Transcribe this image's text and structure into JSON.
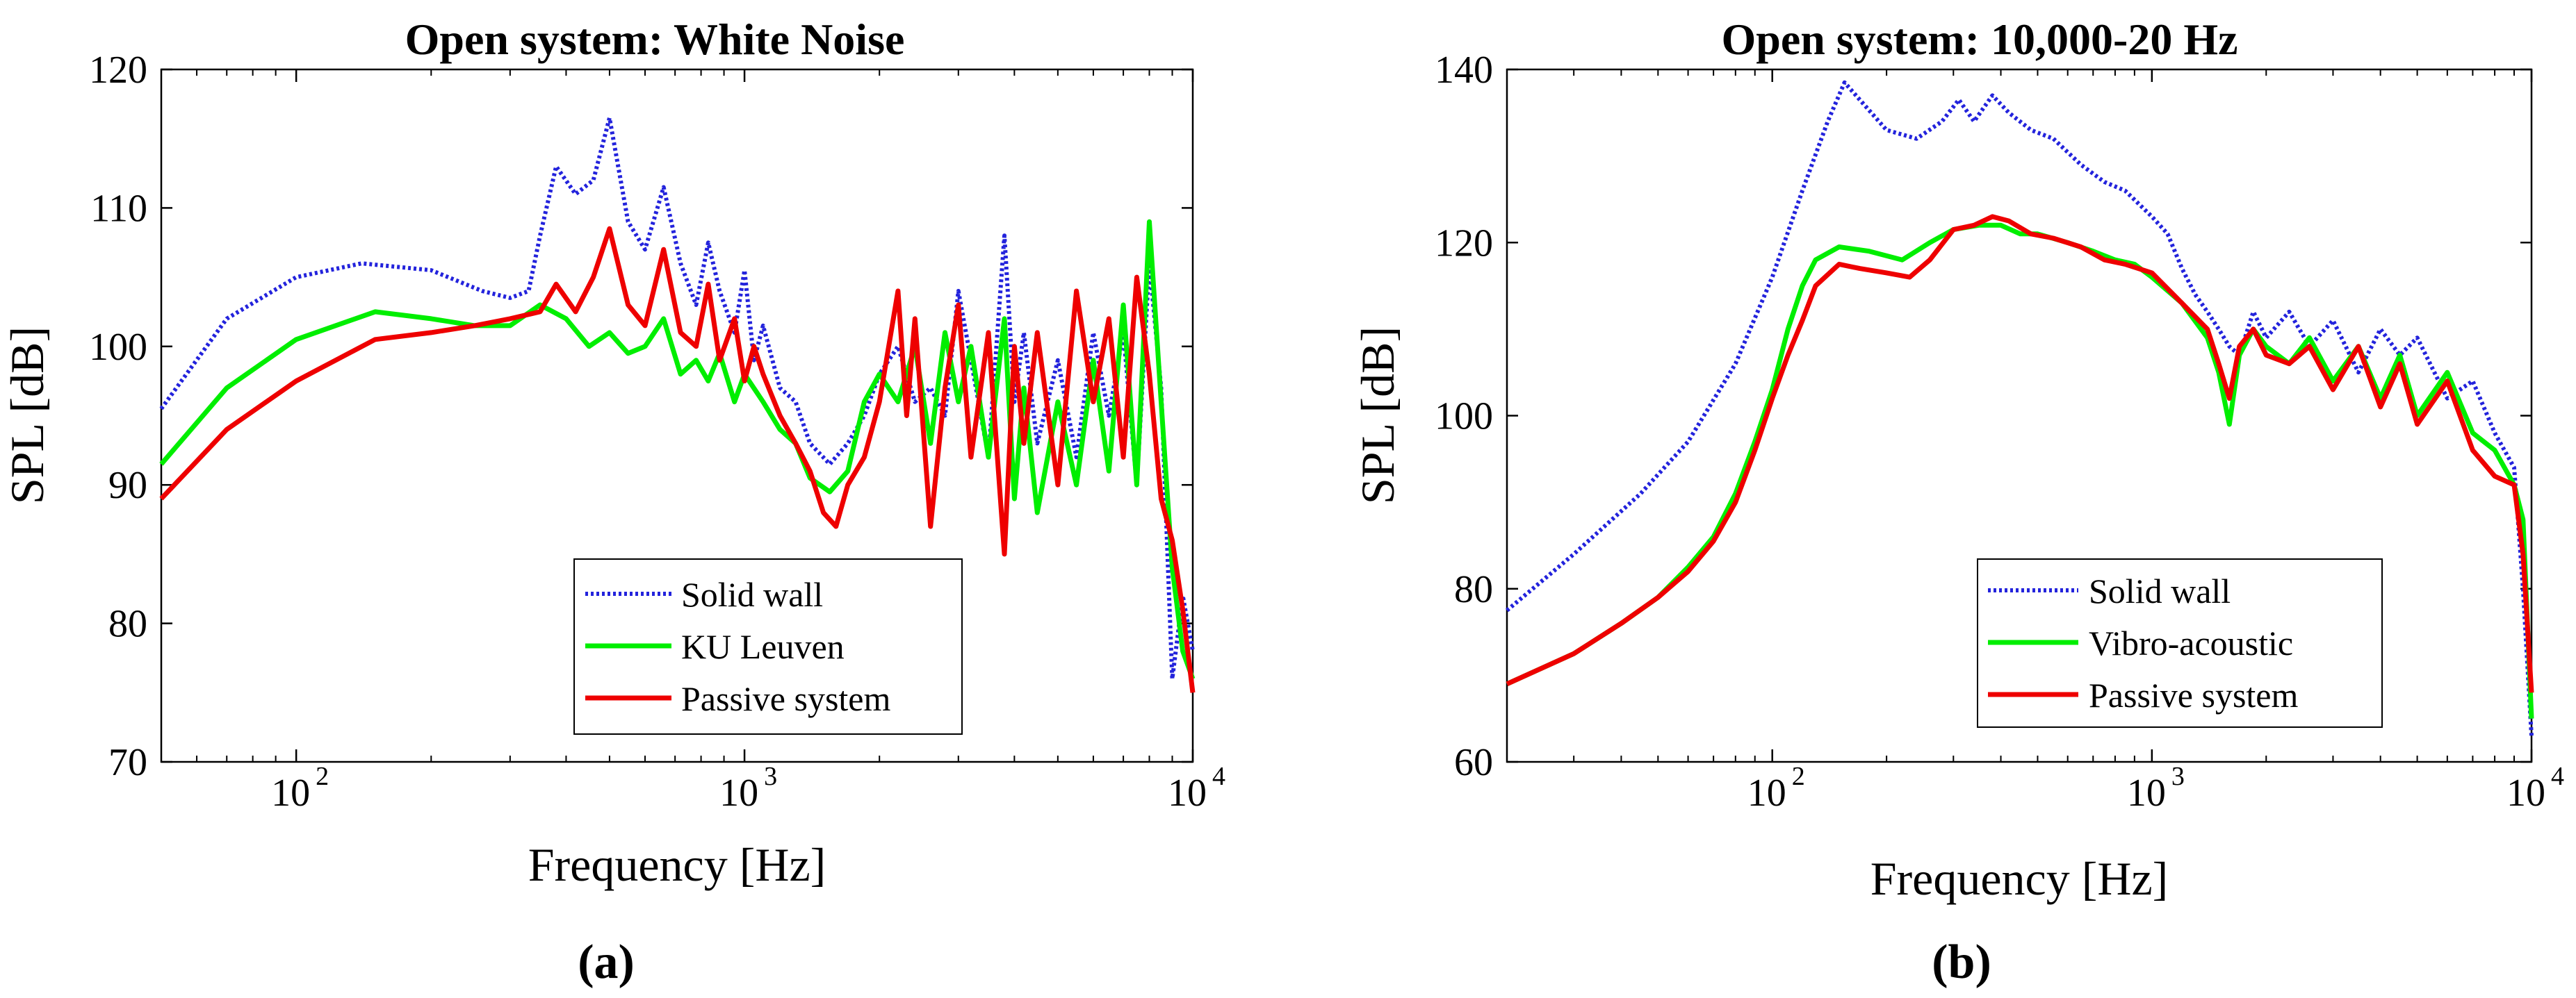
{
  "figure": {
    "panel_labels": [
      "(a)",
      "(b)"
    ]
  },
  "colors": {
    "solid_wall": "#2323dc",
    "ku_leuven": "#00ee00",
    "vibro_acoustic": "#00ee00",
    "passive_system": "#ee0000",
    "axes": "#000000"
  },
  "chart_data": [
    {
      "type": "line",
      "title": "Open system: White Noise",
      "xlabel": "Frequency [Hz]",
      "ylabel": "SPL [dB]",
      "xscale": "log",
      "xlim": [
        50,
        10000
      ],
      "ylim": [
        70,
        120
      ],
      "xticks": [
        {
          "value": 100,
          "base": "10",
          "exp": "2"
        },
        {
          "value": 1000,
          "base": "10",
          "exp": "3"
        },
        {
          "value": 10000,
          "base": "10",
          "exp": "4"
        }
      ],
      "yticks": [
        70,
        80,
        90,
        100,
        110,
        120
      ],
      "grid": false,
      "legend_position": "bottom-right",
      "series": [
        {
          "name": "Solid wall",
          "color": "#2323dc",
          "style": "dotted",
          "x": [
            50,
            70,
            100,
            140,
            200,
            260,
            300,
            330,
            350,
            380,
            420,
            460,
            500,
            550,
            600,
            660,
            720,
            780,
            830,
            880,
            950,
            1000,
            1050,
            1100,
            1200,
            1300,
            1400,
            1550,
            1700,
            1850,
            2000,
            2200,
            2400,
            2600,
            2800,
            3000,
            3200,
            3500,
            3800,
            4000,
            4200,
            4500,
            5000,
            5500,
            6000,
            6500,
            7000,
            7500,
            8000,
            8500,
            9000,
            9500,
            10000
          ],
          "y": [
            95.5,
            102,
            105,
            106,
            105.5,
            104,
            103.5,
            104,
            108,
            113,
            111,
            112,
            116.5,
            109,
            107,
            111.5,
            106,
            103,
            107.5,
            104,
            101,
            105.5,
            99,
            101.5,
            97,
            96,
            93,
            91.5,
            93,
            95,
            98,
            100,
            96,
            97,
            95,
            104,
            99,
            92,
            108,
            96,
            101,
            93,
            99,
            92,
            101,
            95,
            101,
            90,
            106,
            97,
            76,
            82,
            78
          ]
        },
        {
          "name": "KU Leuven",
          "color": "#00ee00",
          "style": "solid",
          "x": [
            50,
            70,
            100,
            150,
            200,
            250,
            300,
            350,
            400,
            450,
            500,
            550,
            600,
            660,
            720,
            780,
            830,
            880,
            950,
            1000,
            1100,
            1200,
            1300,
            1400,
            1550,
            1700,
            1850,
            2000,
            2200,
            2400,
            2600,
            2800,
            3000,
            3200,
            3500,
            3800,
            4000,
            4200,
            4500,
            5000,
            5500,
            6000,
            6500,
            7000,
            7500,
            8000,
            8500,
            9000,
            9500,
            10000
          ],
          "y": [
            91.5,
            97,
            100.5,
            102.5,
            102,
            101.5,
            101.5,
            103,
            102,
            100,
            101,
            99.5,
            100,
            102,
            98,
            99,
            97.5,
            99.5,
            96,
            98,
            96,
            94,
            93,
            90.5,
            89.5,
            91,
            96,
            98,
            96,
            100,
            93,
            101,
            96,
            100,
            92,
            102,
            89,
            97,
            88,
            96,
            90,
            99,
            91,
            103,
            90,
            109,
            96,
            84,
            78,
            76
          ]
        },
        {
          "name": "Passive system",
          "color": "#ee0000",
          "style": "solid",
          "x": [
            50,
            70,
            100,
            150,
            200,
            250,
            300,
            350,
            380,
            420,
            460,
            500,
            550,
            600,
            660,
            720,
            780,
            830,
            880,
            950,
            1000,
            1050,
            1100,
            1200,
            1300,
            1400,
            1500,
            1600,
            1700,
            1850,
            2000,
            2200,
            2300,
            2400,
            2600,
            2800,
            3000,
            3200,
            3500,
            3800,
            4000,
            4200,
            4500,
            5000,
            5500,
            6000,
            6500,
            7000,
            7500,
            8000,
            8500,
            9000,
            9500,
            10000
          ],
          "y": [
            89,
            94,
            97.5,
            100.5,
            101,
            101.5,
            102,
            102.5,
            104.5,
            102.5,
            105,
            108.5,
            103,
            101.5,
            107,
            101,
            100,
            104.5,
            99,
            102,
            97.5,
            100,
            98,
            95,
            93,
            91,
            88,
            87,
            90,
            92,
            96,
            104,
            95,
            102,
            87,
            97,
            103,
            92,
            101,
            85,
            100,
            93,
            101,
            90,
            104,
            96,
            102,
            92,
            105,
            98,
            89,
            86,
            81,
            75
          ]
        }
      ]
    },
    {
      "type": "line",
      "title": "Open system: 10,000-20 Hz",
      "xlabel": "Frequency [Hz]",
      "ylabel": "SPL [dB]",
      "xscale": "log",
      "xlim": [
        20,
        10000
      ],
      "ylim": [
        60,
        140
      ],
      "xticks": [
        {
          "value": 100,
          "base": "10",
          "exp": "2"
        },
        {
          "value": 1000,
          "base": "10",
          "exp": "3"
        },
        {
          "value": 10000,
          "base": "10",
          "exp": "4"
        }
      ],
      "yticks": [
        60,
        80,
        100,
        120,
        140
      ],
      "grid": false,
      "legend_position": "bottom-right",
      "series": [
        {
          "name": "Solid wall",
          "color": "#2323dc",
          "style": "dotted",
          "x": [
            20,
            30,
            45,
            60,
            80,
            100,
            120,
            140,
            155,
            170,
            200,
            240,
            280,
            310,
            340,
            380,
            420,
            480,
            550,
            650,
            750,
            850,
            1000,
            1100,
            1200,
            1300,
            1400,
            1500,
            1600,
            1700,
            1850,
            2000,
            2300,
            2600,
            3000,
            3500,
            4000,
            4500,
            5000,
            6000,
            7000,
            8000,
            9000,
            9500,
            10000
          ],
          "y": [
            77.5,
            84,
            91,
            97,
            106,
            116,
            126,
            134,
            138.5,
            136.5,
            133,
            132,
            134,
            136.5,
            134,
            137,
            135,
            133,
            132,
            129,
            127,
            126,
            123,
            121,
            117,
            114,
            112,
            110,
            108,
            107,
            112,
            109,
            112,
            108,
            111,
            105,
            110,
            107,
            109,
            102,
            104,
            98,
            94,
            80,
            63
          ]
        },
        {
          "name": "Vibro-acoustic",
          "color": "#00ee00",
          "style": "solid",
          "x": [
            20,
            30,
            40,
            50,
            60,
            70,
            80,
            90,
            100,
            110,
            120,
            130,
            150,
            180,
            220,
            260,
            300,
            350,
            400,
            450,
            500,
            600,
            700,
            800,
            900,
            1000,
            1200,
            1400,
            1500,
            1600,
            1700,
            1850,
            2000,
            2300,
            2600,
            3000,
            3500,
            4000,
            4500,
            5000,
            6000,
            7000,
            8000,
            9000,
            9500,
            10000
          ],
          "y": [
            69,
            72.5,
            76,
            79,
            82.5,
            86,
            91,
            97,
            103,
            110,
            115,
            118,
            119.5,
            119,
            118,
            120,
            121.5,
            122,
            122,
            121,
            121,
            120,
            119,
            118,
            117.5,
            116,
            113,
            109,
            105,
            99,
            107,
            110,
            108,
            106,
            109,
            104,
            108,
            102,
            107,
            100,
            105,
            98,
            96,
            92,
            88,
            65
          ]
        },
        {
          "name": "Passive system",
          "color": "#ee0000",
          "style": "solid",
          "x": [
            20,
            30,
            40,
            50,
            60,
            70,
            80,
            90,
            100,
            110,
            120,
            130,
            150,
            170,
            200,
            230,
            260,
            300,
            340,
            380,
            420,
            480,
            550,
            650,
            750,
            850,
            1000,
            1200,
            1400,
            1500,
            1600,
            1700,
            1850,
            2000,
            2300,
            2600,
            3000,
            3500,
            4000,
            4500,
            5000,
            6000,
            7000,
            8000,
            9000,
            9500,
            10000
          ],
          "y": [
            69,
            72.5,
            76,
            79,
            82,
            85.5,
            90,
            96,
            102,
            107,
            111,
            115,
            117.5,
            117,
            116.5,
            116,
            118,
            121.5,
            122,
            123,
            122.5,
            121,
            120.5,
            119.5,
            118,
            117.5,
            116.5,
            113,
            110,
            106,
            102,
            108,
            110,
            107,
            106,
            108,
            103,
            108,
            101,
            106,
            99,
            104,
            96,
            93,
            92,
            84,
            68
          ]
        }
      ]
    }
  ]
}
